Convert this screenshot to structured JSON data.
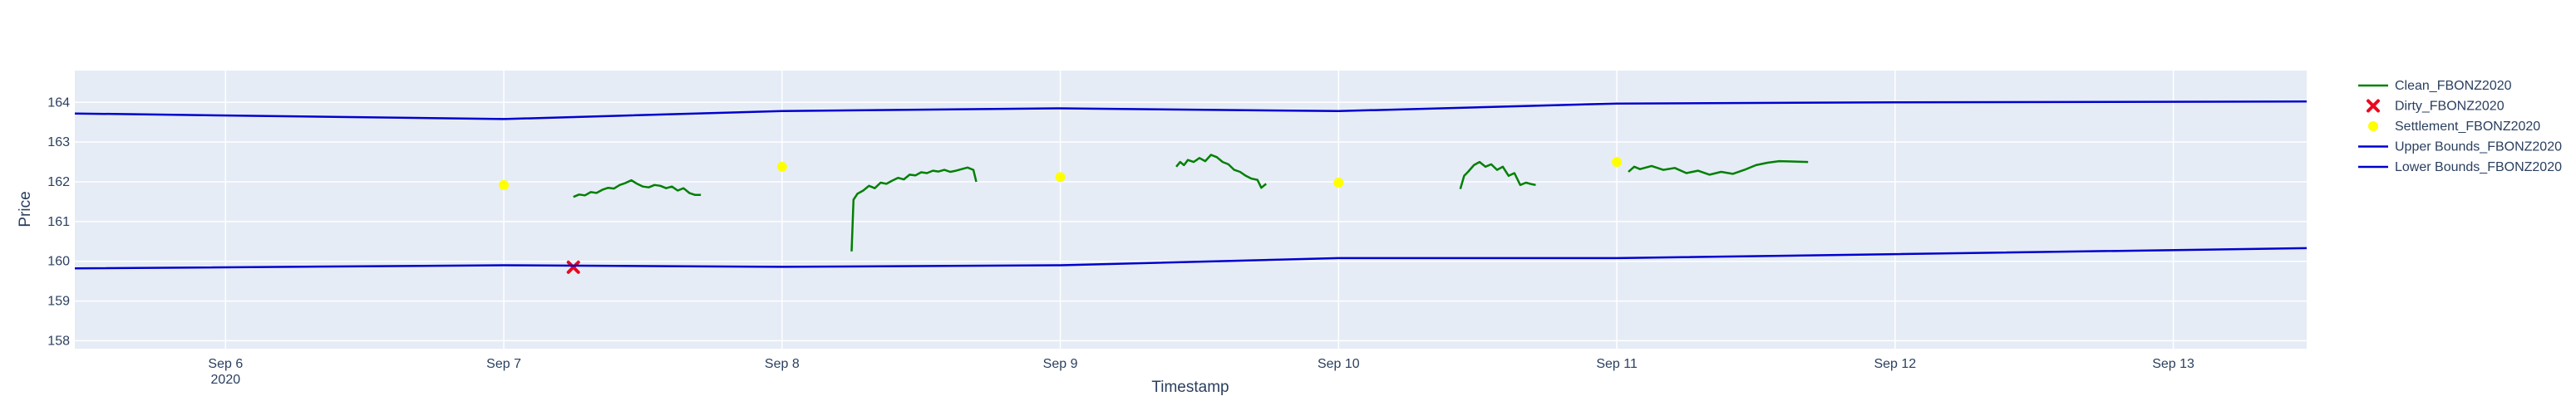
{
  "chart_data": {
    "type": "line",
    "title": "",
    "xlabel": "Timestamp",
    "ylabel": "Price",
    "xlim": [
      "2020-09-05 11:00",
      "2020-09-13 11:30"
    ],
    "ylim": [
      157.8,
      164.8
    ],
    "x_ticks": [
      {
        "x": "2020-09-06",
        "label": "Sep 6",
        "sublabel": "2020"
      },
      {
        "x": "2020-09-07",
        "label": "Sep 7"
      },
      {
        "x": "2020-09-08",
        "label": "Sep 8"
      },
      {
        "x": "2020-09-09",
        "label": "Sep 9"
      },
      {
        "x": "2020-09-10",
        "label": "Sep 10"
      },
      {
        "x": "2020-09-11",
        "label": "Sep 11"
      },
      {
        "x": "2020-09-12",
        "label": "Sep 12"
      },
      {
        "x": "2020-09-13",
        "label": "Sep 13"
      }
    ],
    "y_ticks": [
      158,
      159,
      160,
      161,
      162,
      163,
      164
    ],
    "grid": true,
    "legend_position": "right",
    "background": "#e5ecf6",
    "series": [
      {
        "name": "Clean_FBONZ2020",
        "mode": "lines",
        "color": "#008000",
        "segments": [
          [
            [
              "2020-09-07 06:00",
              161.62
            ],
            [
              "2020-09-07 06:30",
              161.68
            ],
            [
              "2020-09-07 07:00",
              161.66
            ],
            [
              "2020-09-07 07:30",
              161.74
            ],
            [
              "2020-09-07 08:00",
              161.72
            ],
            [
              "2020-09-07 08:30",
              161.8
            ],
            [
              "2020-09-07 09:00",
              161.85
            ],
            [
              "2020-09-07 09:30",
              161.83
            ],
            [
              "2020-09-07 10:00",
              161.92
            ],
            [
              "2020-09-07 10:30",
              161.97
            ],
            [
              "2020-09-07 11:00",
              162.04
            ],
            [
              "2020-09-07 11:30",
              161.95
            ],
            [
              "2020-09-07 12:00",
              161.88
            ],
            [
              "2020-09-07 12:30",
              161.86
            ],
            [
              "2020-09-07 13:00",
              161.92
            ],
            [
              "2020-09-07 13:30",
              161.9
            ],
            [
              "2020-09-07 14:00",
              161.84
            ],
            [
              "2020-09-07 14:30",
              161.88
            ],
            [
              "2020-09-07 15:00",
              161.78
            ],
            [
              "2020-09-07 15:30",
              161.84
            ],
            [
              "2020-09-07 16:00",
              161.72
            ],
            [
              "2020-09-07 16:30",
              161.67
            ],
            [
              "2020-09-07 17:00",
              161.67
            ]
          ],
          [
            [
              "2020-09-08 06:00",
              160.25
            ],
            [
              "2020-09-08 06:10",
              161.55
            ],
            [
              "2020-09-08 06:30",
              161.7
            ],
            [
              "2020-09-08 07:00",
              161.78
            ],
            [
              "2020-09-08 07:30",
              161.9
            ],
            [
              "2020-09-08 08:00",
              161.84
            ],
            [
              "2020-09-08 08:30",
              161.98
            ],
            [
              "2020-09-08 09:00",
              161.95
            ],
            [
              "2020-09-08 09:30",
              162.03
            ],
            [
              "2020-09-08 10:00",
              162.1
            ],
            [
              "2020-09-08 10:30",
              162.06
            ],
            [
              "2020-09-08 11:00",
              162.18
            ],
            [
              "2020-09-08 11:30",
              162.16
            ],
            [
              "2020-09-08 12:00",
              162.24
            ],
            [
              "2020-09-08 12:30",
              162.22
            ],
            [
              "2020-09-08 13:00",
              162.28
            ],
            [
              "2020-09-08 13:30",
              162.26
            ],
            [
              "2020-09-08 14:00",
              162.3
            ],
            [
              "2020-09-08 14:30",
              162.25
            ],
            [
              "2020-09-08 15:00",
              162.28
            ],
            [
              "2020-09-08 15:30",
              162.32
            ],
            [
              "2020-09-08 16:00",
              162.36
            ],
            [
              "2020-09-08 16:30",
              162.3
            ],
            [
              "2020-09-08 16:45",
              162.0
            ]
          ],
          [
            [
              "2020-09-09 10:00",
              162.38
            ],
            [
              "2020-09-09 10:20",
              162.5
            ],
            [
              "2020-09-09 10:40",
              162.42
            ],
            [
              "2020-09-09 11:00",
              162.55
            ],
            [
              "2020-09-09 11:30",
              162.5
            ],
            [
              "2020-09-09 12:00",
              162.6
            ],
            [
              "2020-09-09 12:30",
              162.52
            ],
            [
              "2020-09-09 13:00",
              162.68
            ],
            [
              "2020-09-09 13:30",
              162.62
            ],
            [
              "2020-09-09 14:00",
              162.5
            ],
            [
              "2020-09-09 14:30",
              162.44
            ],
            [
              "2020-09-09 15:00",
              162.3
            ],
            [
              "2020-09-09 15:30",
              162.25
            ],
            [
              "2020-09-09 16:00",
              162.15
            ],
            [
              "2020-09-09 16:30",
              162.08
            ],
            [
              "2020-09-09 17:00",
              162.05
            ],
            [
              "2020-09-09 17:20",
              161.85
            ],
            [
              "2020-09-09 17:45",
              161.95
            ]
          ],
          [
            [
              "2020-09-10 10:30",
              161.82
            ],
            [
              "2020-09-10 10:50",
              162.15
            ],
            [
              "2020-09-10 11:10",
              162.25
            ],
            [
              "2020-09-10 11:40",
              162.42
            ],
            [
              "2020-09-10 12:10",
              162.5
            ],
            [
              "2020-09-10 12:40",
              162.38
            ],
            [
              "2020-09-10 13:10",
              162.44
            ],
            [
              "2020-09-10 13:40",
              162.3
            ],
            [
              "2020-09-10 14:10",
              162.38
            ],
            [
              "2020-09-10 14:40",
              162.15
            ],
            [
              "2020-09-10 15:10",
              162.22
            ],
            [
              "2020-09-10 15:40",
              161.92
            ],
            [
              "2020-09-10 16:10",
              161.98
            ],
            [
              "2020-09-10 16:40",
              161.94
            ],
            [
              "2020-09-10 17:00",
              161.92
            ]
          ],
          [
            [
              "2020-09-11 01:00",
              162.25
            ],
            [
              "2020-09-11 01:30",
              162.38
            ],
            [
              "2020-09-11 02:00",
              162.32
            ],
            [
              "2020-09-11 03:00",
              162.4
            ],
            [
              "2020-09-11 04:00",
              162.3
            ],
            [
              "2020-09-11 05:00",
              162.35
            ],
            [
              "2020-09-11 06:00",
              162.22
            ],
            [
              "2020-09-11 07:00",
              162.28
            ],
            [
              "2020-09-11 08:00",
              162.18
            ],
            [
              "2020-09-11 09:00",
              162.25
            ],
            [
              "2020-09-11 10:00",
              162.2
            ],
            [
              "2020-09-11 11:00",
              162.3
            ],
            [
              "2020-09-11 12:00",
              162.42
            ],
            [
              "2020-09-11 13:00",
              162.48
            ],
            [
              "2020-09-11 14:00",
              162.52
            ],
            [
              "2020-09-11 16:30",
              162.5
            ]
          ]
        ]
      },
      {
        "name": "Dirty_FBONZ2020",
        "mode": "markers",
        "marker": "x",
        "color": "#e8091e",
        "points": [
          [
            "2020-09-07 06:00",
            159.85
          ]
        ]
      },
      {
        "name": "Settlement_FBONZ2020",
        "mode": "markers",
        "marker": "circle",
        "color": "#ffff00",
        "points": [
          [
            "2020-09-07",
            161.92
          ],
          [
            "2020-09-08",
            162.38
          ],
          [
            "2020-09-09",
            162.12
          ],
          [
            "2020-09-10",
            161.98
          ],
          [
            "2020-09-11",
            162.5
          ]
        ]
      },
      {
        "name": "Upper Bounds_FBONZ2020",
        "mode": "lines",
        "color": "#0000cd",
        "points": [
          [
            "2020-09-05 11:00",
            163.72
          ],
          [
            "2020-09-07",
            163.58
          ],
          [
            "2020-09-08",
            163.78
          ],
          [
            "2020-09-09",
            163.85
          ],
          [
            "2020-09-10",
            163.78
          ],
          [
            "2020-09-11",
            163.97
          ],
          [
            "2020-09-12",
            164.0
          ],
          [
            "2020-09-13 11:30",
            164.02
          ]
        ]
      },
      {
        "name": "Lower Bounds_FBONZ2020",
        "mode": "lines",
        "color": "#0000cd",
        "points": [
          [
            "2020-09-05 11:00",
            159.82
          ],
          [
            "2020-09-07",
            159.9
          ],
          [
            "2020-09-08",
            159.86
          ],
          [
            "2020-09-09",
            159.9
          ],
          [
            "2020-09-10",
            160.08
          ],
          [
            "2020-09-11",
            160.08
          ],
          [
            "2020-09-12",
            160.18
          ],
          [
            "2020-09-13 11:30",
            160.33
          ]
        ]
      }
    ]
  }
}
